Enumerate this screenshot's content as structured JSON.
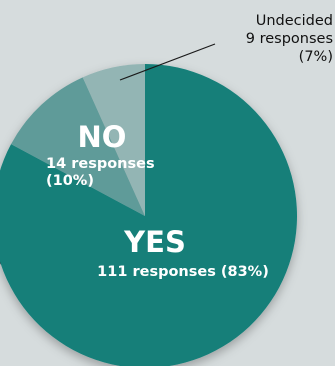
{
  "chart_data": {
    "type": "pie",
    "slices": [
      {
        "label": "YES",
        "detail": "111 responses (83%)",
        "responses": 111,
        "percent": 83,
        "color": "#127f79"
      },
      {
        "label": "NO",
        "detail_line1": "14 responses",
        "detail_line2": "(10%)",
        "responses": 14,
        "percent": 10,
        "color": "#5e9b99"
      },
      {
        "label": "Undecided",
        "detail_line1": "9 responses",
        "detail_line2": "(7%)",
        "responses": 9,
        "percent": 7,
        "color": "#93b5b4"
      }
    ],
    "start_angle_deg": 0,
    "direction": "clockwise"
  },
  "colors": {
    "background": "#d6dcdd",
    "dark_blob": "#2f4550",
    "leader_line": "#1a1a1a"
  }
}
